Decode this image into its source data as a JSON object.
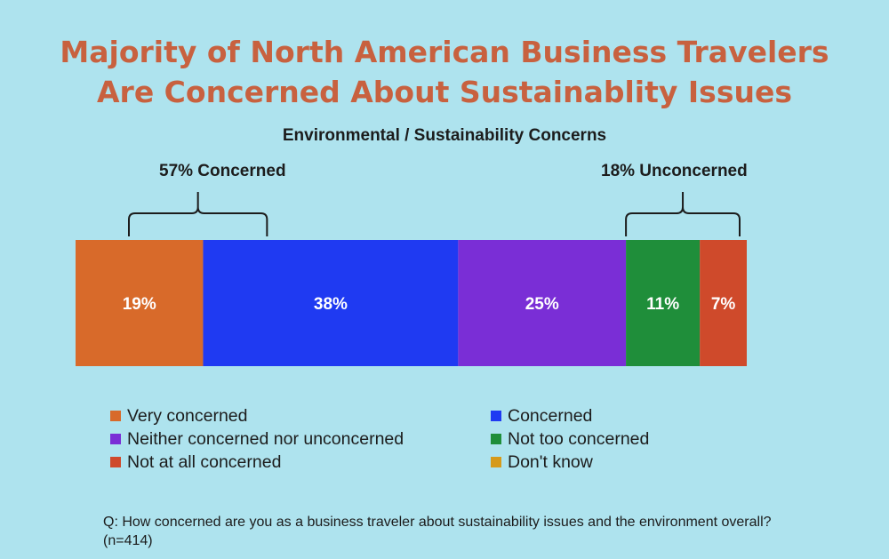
{
  "title_lines": [
    "Majority of North American Business Travelers",
    "Are Concerned About Sustainablity Issues"
  ],
  "groups": {
    "concerned_label": "57% Concerned",
    "unconcerned_label": "18% Unconcerned"
  },
  "footnote": "Q: How concerned are you as a business traveler about sustainability issues and the environment overall? (n=414)",
  "colors": {
    "very_concerned": "#d86a2a",
    "concerned": "#1f3af2",
    "neither": "#7a2ed6",
    "not_too": "#1f8e3a",
    "not_at_all": "#cf4a2b",
    "dont_know": "#d69a1a"
  },
  "chart_data": {
    "type": "bar",
    "orientation": "horizontal-stacked-100",
    "title": "Environmental / Sustainability Concerns",
    "xlim": [
      0,
      100
    ],
    "series": [
      {
        "name": "Very concerned",
        "value": 19,
        "label": "19%",
        "color": "#d86a2a"
      },
      {
        "name": "Concerned",
        "value": 38,
        "label": "38%",
        "color": "#1f3af2"
      },
      {
        "name": "Neither concerned nor unconcerned",
        "value": 25,
        "label": "25%",
        "color": "#7a2ed6"
      },
      {
        "name": "Not too concerned",
        "value": 11,
        "label": "11%",
        "color": "#1f8e3a"
      },
      {
        "name": "Not at all concerned",
        "value": 7,
        "label": "7%",
        "color": "#cf4a2b"
      },
      {
        "name": "Don't know",
        "value": 0,
        "label": "",
        "color": "#d69a1a"
      }
    ],
    "legend_placement": "bottom",
    "grid": false
  }
}
